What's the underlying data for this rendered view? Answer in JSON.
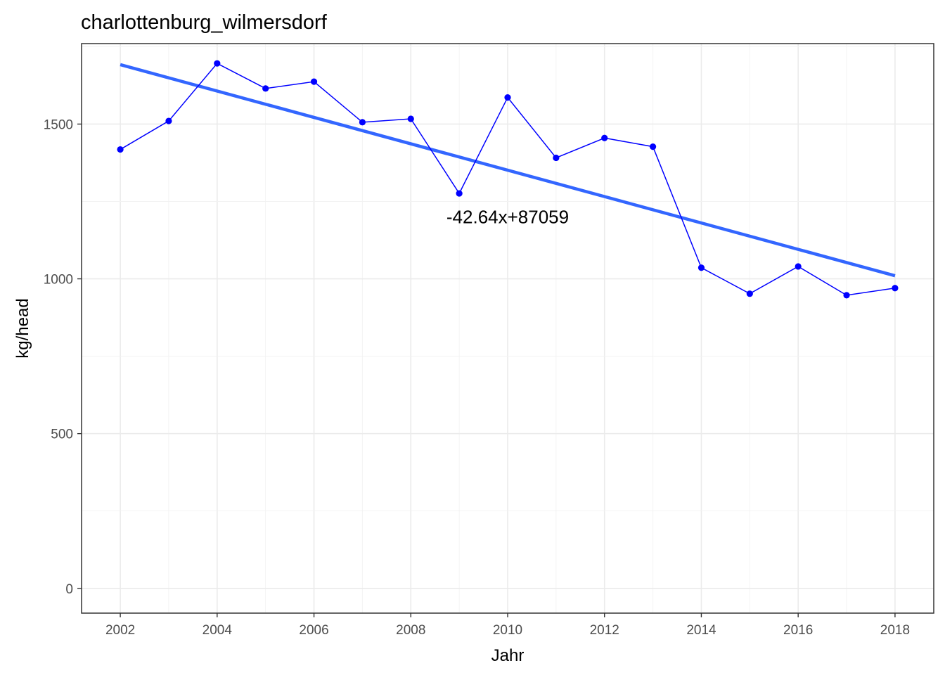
{
  "chart_data": {
    "type": "line",
    "title": "charlottenburg_wilmersdorf",
    "xlabel": "Jahr",
    "ylabel": "kg/head",
    "xlim": [
      2001.2,
      2018.8
    ],
    "ylim": [
      -80,
      1760
    ],
    "x_ticks": [
      2002,
      2004,
      2006,
      2008,
      2010,
      2012,
      2014,
      2016,
      2018
    ],
    "y_ticks": [
      0,
      500,
      1000,
      1500
    ],
    "grid": true,
    "legend": "none",
    "series": [
      {
        "x": [
          2002,
          2003,
          2004,
          2005,
          2006,
          2007,
          2008,
          2009,
          2010,
          2011,
          2012,
          2013,
          2014,
          2015,
          2016,
          2017,
          2018
        ],
        "y": [
          1418,
          1510,
          1696,
          1615,
          1637,
          1506,
          1517,
          1276,
          1586,
          1391,
          1455,
          1427,
          1036,
          952,
          1040,
          947,
          970
        ],
        "color": "#0000ff"
      }
    ],
    "trendline": {
      "x": [
        2002,
        2018
      ],
      "y": [
        1692,
        1010
      ],
      "color": "#3366ff"
    },
    "annotation": {
      "text": "-42.64x+87059",
      "x": 2010,
      "y": 1200
    }
  }
}
